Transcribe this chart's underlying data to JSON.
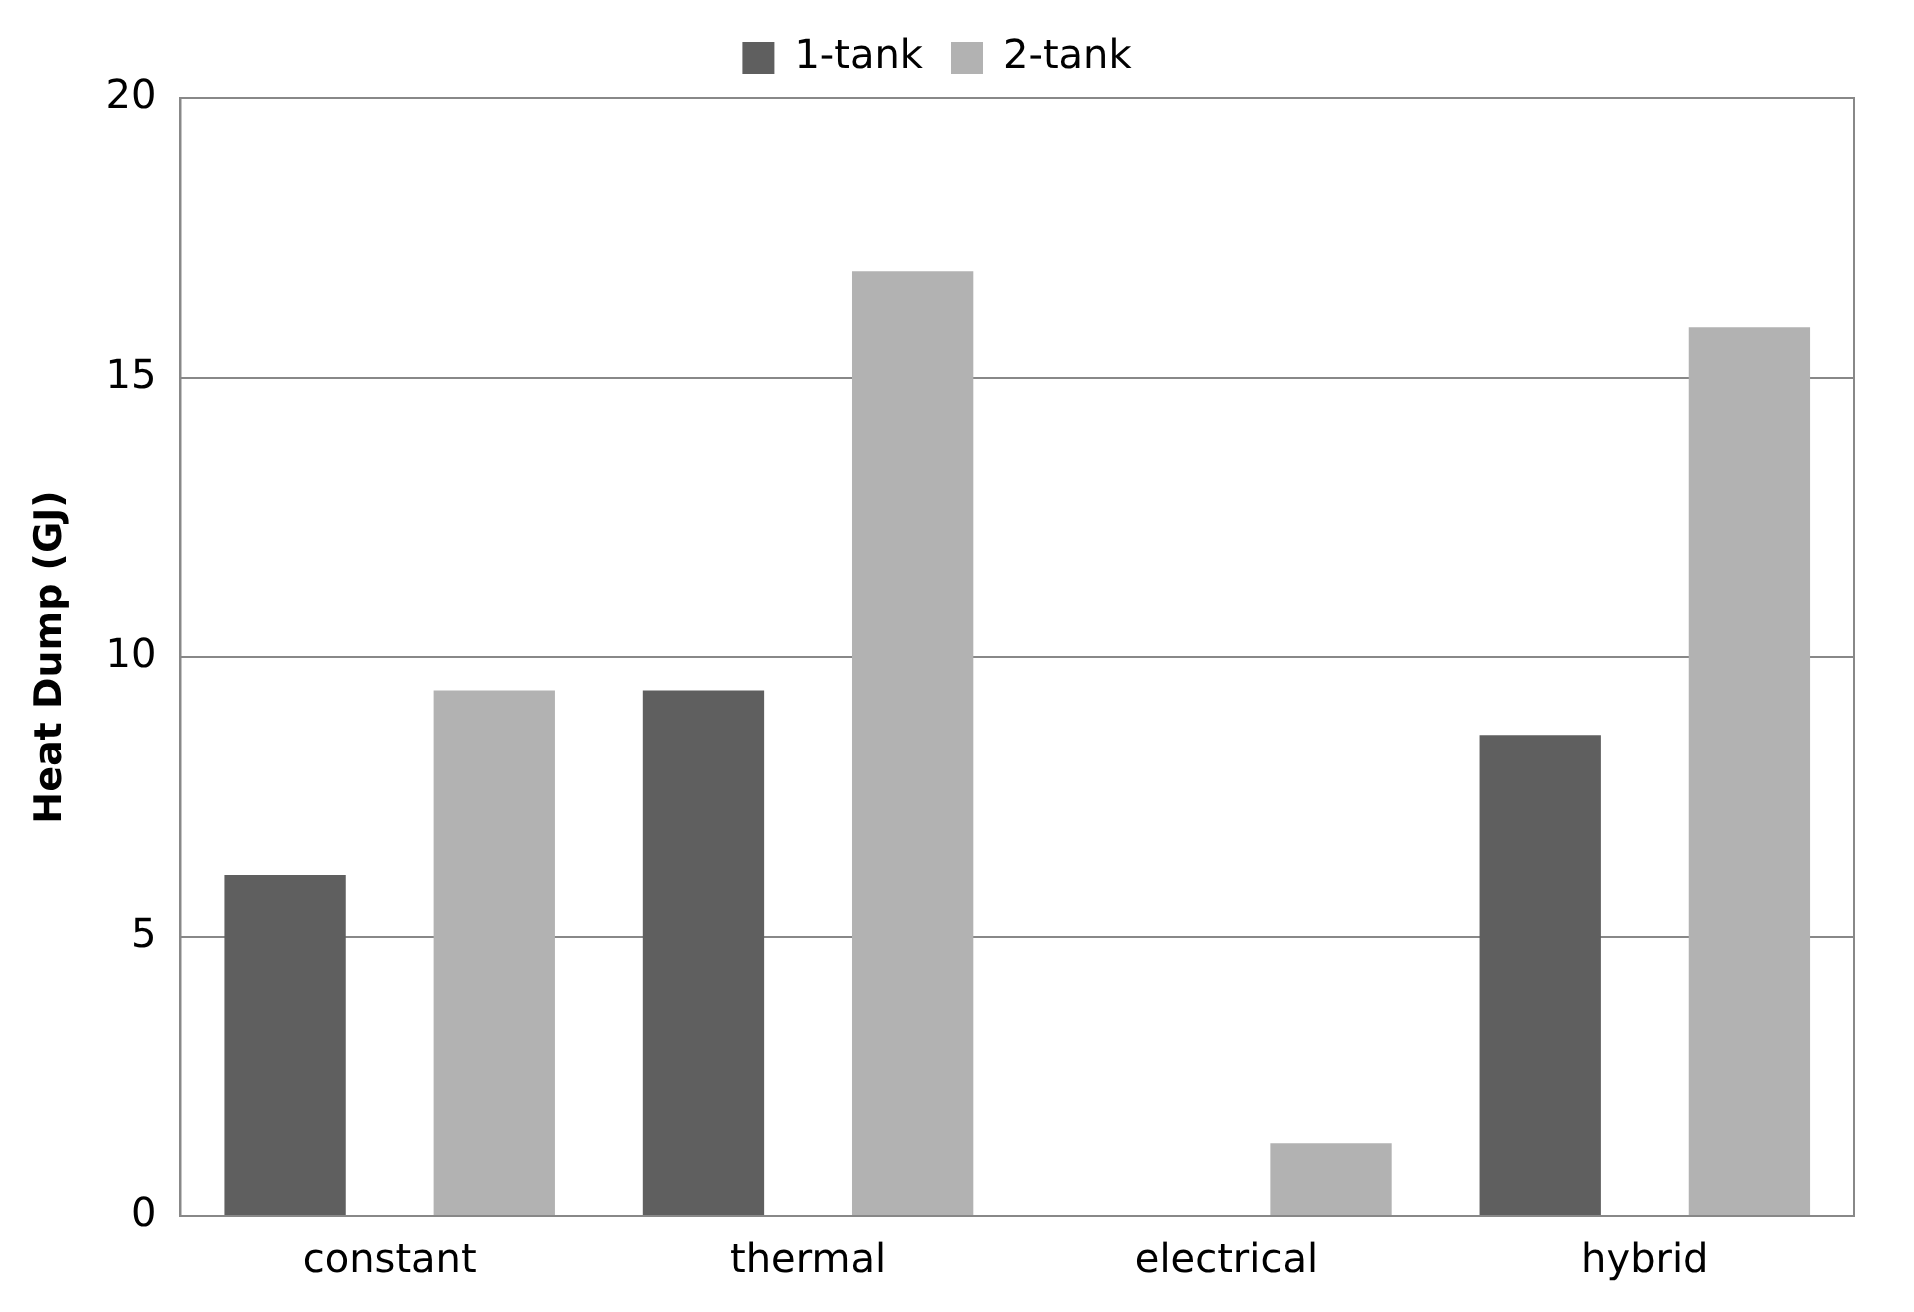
{
  "chart_data": {
    "type": "bar",
    "categories": [
      "constant",
      "thermal",
      "electrical",
      "hybrid"
    ],
    "series": [
      {
        "name": "1-tank",
        "color": "#5f5f5f",
        "values": [
          6.1,
          9.4,
          0,
          8.6
        ]
      },
      {
        "name": "2-tank",
        "color": "#b2b2b2",
        "values": [
          9.4,
          16.9,
          1.3,
          15.9
        ]
      }
    ],
    "ylabel": "Heat Dump (GJ)",
    "ylim": [
      0,
      20
    ],
    "yticks": [
      0,
      5,
      10,
      15,
      20
    ],
    "grid": "y",
    "legend": "top"
  }
}
